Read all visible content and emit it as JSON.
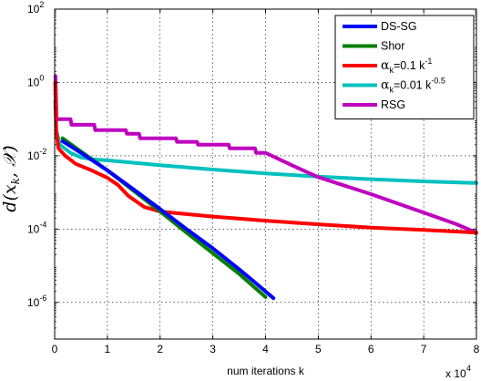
{
  "chart_data": {
    "type": "line",
    "xlabel": "num iterations k",
    "ylabel": "d(x_k, X)",
    "x_multiplier_label": "x 10",
    "x_multiplier_exp": "4",
    "xlim": [
      0,
      80000
    ],
    "ylim": [
      1e-07,
      100
    ],
    "yscale": "log",
    "grid": true,
    "legend_position": "top-right",
    "x_ticks": [
      {
        "v": 0,
        "label": "0"
      },
      {
        "v": 10000,
        "label": "1"
      },
      {
        "v": 20000,
        "label": "2"
      },
      {
        "v": 30000,
        "label": "3"
      },
      {
        "v": 40000,
        "label": "4"
      },
      {
        "v": 50000,
        "label": "5"
      },
      {
        "v": 60000,
        "label": "6"
      },
      {
        "v": 70000,
        "label": "7"
      },
      {
        "v": 80000,
        "label": "8"
      }
    ],
    "y_ticks": [
      {
        "v": 1e-06,
        "base": "10",
        "exp": "-6"
      },
      {
        "v": 0.0001,
        "base": "10",
        "exp": "-4"
      },
      {
        "v": 0.01,
        "base": "10",
        "exp": "-2"
      },
      {
        "v": 1,
        "base": "10",
        "exp": "0"
      },
      {
        "v": 100,
        "base": "10",
        "exp": "2"
      }
    ],
    "series": [
      {
        "legend": "DS-SG",
        "color": "#0000ff",
        "points": [
          [
            1500,
            0.025
          ],
          [
            5000,
            0.012
          ],
          [
            10000,
            0.004
          ],
          [
            15000,
            0.0012
          ],
          [
            20000,
            0.00035
          ],
          [
            25000,
            0.0001
          ],
          [
            30000,
            3e-05
          ],
          [
            35000,
            8e-06
          ],
          [
            38000,
            3.5e-06
          ],
          [
            41000,
            1.5e-06
          ],
          [
            41500,
            1.3e-06
          ]
        ]
      },
      {
        "legend": "Shor",
        "color": "#008000",
        "points": [
          [
            1500,
            0.03
          ],
          [
            5000,
            0.013
          ],
          [
            10000,
            0.004
          ],
          [
            15000,
            0.0011
          ],
          [
            20000,
            0.0003
          ],
          [
            25000,
            8e-05
          ],
          [
            30000,
            2.2e-05
          ],
          [
            35000,
            6e-06
          ],
          [
            38000,
            2.5e-06
          ],
          [
            40000,
            1.4e-06
          ]
        ]
      },
      {
        "legend": "α_k=0.1 k^-1",
        "color": "#ff0000",
        "text": "=0.1 k",
        "exp": "-1",
        "points": [
          [
            100,
            1.0
          ],
          [
            300,
            0.05
          ],
          [
            700,
            0.016
          ],
          [
            2000,
            0.01
          ],
          [
            4000,
            0.006
          ],
          [
            7000,
            0.004
          ],
          [
            10000,
            0.0025
          ],
          [
            12000,
            0.0016
          ],
          [
            14000,
            0.0008
          ],
          [
            17000,
            0.0004
          ],
          [
            20000,
            0.0003
          ],
          [
            30000,
            0.00022
          ],
          [
            40000,
            0.00017
          ],
          [
            50000,
            0.000135
          ],
          [
            60000,
            0.00011
          ],
          [
            70000,
            9.5e-05
          ],
          [
            80000,
            8e-05
          ]
        ]
      },
      {
        "legend": "α_k=0.01 k^-0.5",
        "color": "#00c0c0",
        "text": "=0.01 k",
        "exp": "-0.5",
        "points": [
          [
            100,
            0.3
          ],
          [
            300,
            0.05
          ],
          [
            1000,
            0.02
          ],
          [
            3000,
            0.012
          ],
          [
            5000,
            0.009
          ],
          [
            7000,
            0.008
          ],
          [
            10000,
            0.0075
          ],
          [
            20000,
            0.0055
          ],
          [
            30000,
            0.0042
          ],
          [
            40000,
            0.0033
          ],
          [
            50000,
            0.0027
          ],
          [
            60000,
            0.0023
          ],
          [
            70000,
            0.002
          ],
          [
            80000,
            0.0018
          ]
        ]
      },
      {
        "legend": "RSG",
        "color": "#bf00bf",
        "points": [
          [
            150,
            1.5
          ],
          [
            350,
            0.1
          ],
          [
            3000,
            0.1
          ],
          [
            3200,
            0.07
          ],
          [
            7500,
            0.07
          ],
          [
            7700,
            0.05
          ],
          [
            13500,
            0.05
          ],
          [
            13700,
            0.04
          ],
          [
            16000,
            0.04
          ],
          [
            16200,
            0.03
          ],
          [
            23000,
            0.03
          ],
          [
            23200,
            0.024
          ],
          [
            27000,
            0.024
          ],
          [
            27200,
            0.02
          ],
          [
            33000,
            0.02
          ],
          [
            33200,
            0.016
          ],
          [
            38000,
            0.016
          ],
          [
            38200,
            0.012
          ],
          [
            40000,
            0.012
          ],
          [
            45000,
            0.0055
          ],
          [
            50000,
            0.0026
          ],
          [
            60000,
            0.0009
          ],
          [
            70000,
            0.00028
          ],
          [
            76000,
            0.00014
          ],
          [
            80000,
            8e-05
          ]
        ]
      }
    ]
  }
}
